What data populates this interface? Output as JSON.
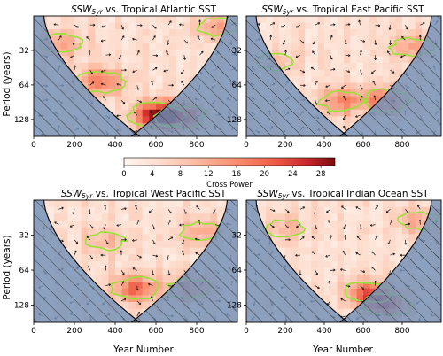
{
  "colors": {
    "coi": "#7391b8",
    "power_low": "#fff1ea",
    "power_high": "#8a0f0f",
    "contour": "#9be03a",
    "arrow": "#111111"
  },
  "colorbar": {
    "label": "Cross Power",
    "ticks": [
      "0",
      "4",
      "8",
      "12",
      "16",
      "20",
      "24",
      "28"
    ],
    "range": [
      0,
      30
    ]
  },
  "chart_data": [
    {
      "type": "heatmap",
      "title_sub": "5yr",
      "title_main": "SSW",
      "title_rest": " vs. Tropical Atlantic SST",
      "xlabel": "",
      "ylabel": "Period (years)",
      "x_ticks": [
        "0",
        "200",
        "400",
        "600",
        "800"
      ],
      "y_ticks": [
        "32",
        "64",
        "128"
      ],
      "xlim": [
        0,
        1000
      ],
      "ylim_period": [
        16,
        180
      ],
      "y_log": true,
      "hotspots": [
        {
          "x": 330,
          "period": 60,
          "power": 14
        },
        {
          "x": 600,
          "period": 118,
          "power": 22
        },
        {
          "x": 720,
          "period": 120,
          "power": 18
        },
        {
          "x": 130,
          "period": 28,
          "power": 9
        },
        {
          "x": 900,
          "period": 20,
          "power": 8
        }
      ]
    },
    {
      "type": "heatmap",
      "title_sub": "5yr",
      "title_main": "SSW",
      "title_rest": " vs. Tropical East Pacific SST",
      "xlabel": "",
      "ylabel": "",
      "x_ticks": [
        "0",
        "200",
        "400",
        "600",
        "800"
      ],
      "y_ticks": [
        "32",
        "64",
        "128"
      ],
      "xlim": [
        0,
        1000
      ],
      "ylim_period": [
        16,
        180
      ],
      "y_log": true,
      "hotspots": [
        {
          "x": 490,
          "period": 88,
          "power": 13
        },
        {
          "x": 720,
          "period": 88,
          "power": 15
        },
        {
          "x": 850,
          "period": 30,
          "power": 9
        },
        {
          "x": 150,
          "period": 40,
          "power": 6
        }
      ]
    },
    {
      "type": "heatmap",
      "title_sub": "5yr",
      "title_main": "SSW",
      "title_rest": " vs. Tropical West Pacific SST",
      "xlabel": "Year Number",
      "ylabel": "Period (years)",
      "x_ticks": [
        "0",
        "200",
        "400",
        "600",
        "800"
      ],
      "y_ticks": [
        "32",
        "64",
        "128"
      ],
      "xlim": [
        0,
        1000
      ],
      "ylim_period": [
        16,
        180
      ],
      "y_log": true,
      "hotspots": [
        {
          "x": 500,
          "period": 92,
          "power": 15
        },
        {
          "x": 770,
          "period": 92,
          "power": 12
        },
        {
          "x": 820,
          "period": 30,
          "power": 8
        },
        {
          "x": 350,
          "period": 36,
          "power": 6
        }
      ]
    },
    {
      "type": "heatmap",
      "title_sub": "5yr",
      "title_main": "SSW",
      "title_rest": " vs. Tropical Indian Ocean SST",
      "xlabel": "Year Number",
      "ylabel": "",
      "x_ticks": [
        "0",
        "200",
        "400",
        "600",
        "800"
      ],
      "y_ticks": [
        "32",
        "64",
        "128"
      ],
      "xlim": [
        0,
        1000
      ],
      "ylim_period": [
        16,
        180
      ],
      "y_log": true,
      "hotspots": [
        {
          "x": 620,
          "period": 100,
          "power": 15
        },
        {
          "x": 720,
          "period": 128,
          "power": 17
        },
        {
          "x": 200,
          "period": 28,
          "power": 6
        },
        {
          "x": 880,
          "period": 24,
          "power": 7
        }
      ]
    }
  ]
}
